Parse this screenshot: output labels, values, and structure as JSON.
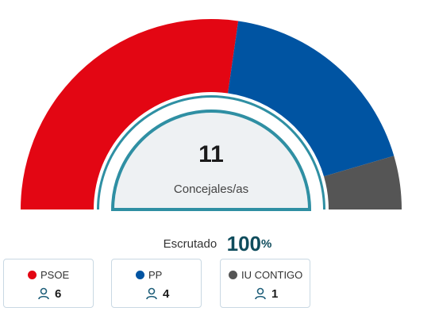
{
  "chart_data": {
    "type": "pie",
    "subtype": "hemicycle",
    "total_seats": "11",
    "center_label": "Concejales/as",
    "parties": [
      {
        "name": "PSOE",
        "seats": 6,
        "color": "#e30613"
      },
      {
        "name": "PP",
        "seats": 4,
        "color": "#0054a2"
      },
      {
        "name": "IU CONTIGO",
        "seats": 1,
        "color": "#555555"
      }
    ]
  },
  "scrutiny": {
    "label": "Escrutado",
    "value": "100",
    "unit": "%"
  },
  "colors": {
    "accent": "#2f8fa3",
    "inner_fill": "#eef1f3",
    "title_value": "#0f4c5c"
  },
  "icons": {
    "seats": "person-icon"
  }
}
